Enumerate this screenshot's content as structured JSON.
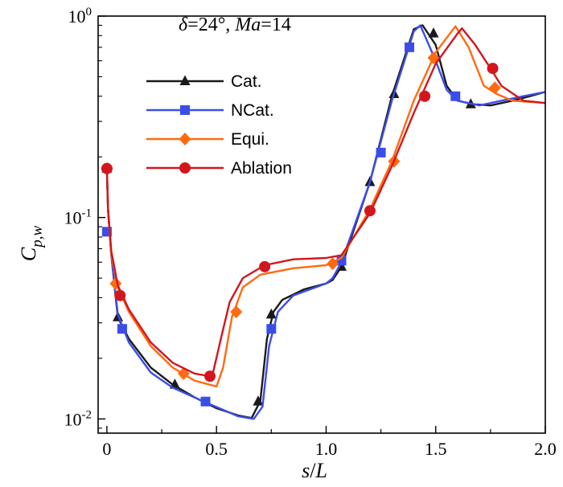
{
  "chart_data": {
    "type": "line",
    "log_y": true,
    "title_parts": {
      "delta": "δ",
      "delta_value": "=24°,  ",
      "ma": "Ma",
      "ma_value": "=14"
    },
    "xlabel": {
      "var": "s",
      "sep": "/",
      "ref": "L"
    },
    "ylabel": {
      "base": "C",
      "sub": "p,w"
    },
    "xlim": [
      -0.04,
      2.0
    ],
    "ylim": [
      0.0085,
      1.0
    ],
    "x_ticks": [
      0,
      0.5,
      1.0,
      1.5,
      2.0
    ],
    "x_tick_labels": [
      "0",
      "0.5",
      "1.0",
      "1.5",
      "2.0"
    ],
    "y_ticks": [
      0.01,
      0.1,
      1.0
    ],
    "y_tick_labels": [
      {
        "base": "10",
        "exp": "-2"
      },
      {
        "base": "10",
        "exp": "-1"
      },
      {
        "base": "10",
        "exp": "0"
      }
    ],
    "legend_position": "top-left",
    "series": [
      {
        "name": "Cat.",
        "color": "#1a1a1a",
        "marker": "triangle",
        "line": [
          [
            0,
            0.175
          ],
          [
            0.005,
            0.11
          ],
          [
            0.02,
            0.065
          ],
          [
            0.05,
            0.032
          ],
          [
            0.1,
            0.025
          ],
          [
            0.2,
            0.018
          ],
          [
            0.3,
            0.0148
          ],
          [
            0.4,
            0.0128
          ],
          [
            0.5,
            0.0113
          ],
          [
            0.6,
            0.0104
          ],
          [
            0.66,
            0.0101
          ],
          [
            0.7,
            0.0123
          ],
          [
            0.73,
            0.025
          ],
          [
            0.76,
            0.034
          ],
          [
            0.8,
            0.039
          ],
          [
            0.9,
            0.044
          ],
          [
            1.0,
            0.047
          ],
          [
            1.03,
            0.049
          ],
          [
            1.07,
            0.057
          ],
          [
            1.2,
            0.15
          ],
          [
            1.3,
            0.4
          ],
          [
            1.4,
            0.86
          ],
          [
            1.44,
            0.9
          ],
          [
            1.5,
            0.72
          ],
          [
            1.55,
            0.45
          ],
          [
            1.6,
            0.38
          ],
          [
            1.67,
            0.365
          ],
          [
            1.75,
            0.36
          ],
          [
            1.85,
            0.38
          ],
          [
            1.93,
            0.4
          ],
          [
            2.0,
            0.42
          ]
        ],
        "markers": [
          [
            0,
            0.175
          ],
          [
            0.05,
            0.032
          ],
          [
            0.31,
            0.0148
          ],
          [
            0.69,
            0.0122
          ],
          [
            0.75,
            0.033
          ],
          [
            1.07,
            0.057
          ],
          [
            1.2,
            0.15
          ],
          [
            1.31,
            0.41
          ],
          [
            1.49,
            0.82
          ],
          [
            1.66,
            0.365
          ]
        ]
      },
      {
        "name": "NCat.",
        "color": "#3b4de8",
        "marker": "square",
        "line": [
          [
            0,
            0.175
          ],
          [
            0.005,
            0.11
          ],
          [
            0.02,
            0.065
          ],
          [
            0.05,
            0.033
          ],
          [
            0.1,
            0.024
          ],
          [
            0.2,
            0.017
          ],
          [
            0.3,
            0.0143
          ],
          [
            0.45,
            0.0121
          ],
          [
            0.6,
            0.0103
          ],
          [
            0.67,
            0.01
          ],
          [
            0.71,
            0.0115
          ],
          [
            0.74,
            0.023
          ],
          [
            0.78,
            0.034
          ],
          [
            0.85,
            0.041
          ],
          [
            1.0,
            0.047
          ],
          [
            1.03,
            0.05
          ],
          [
            1.07,
            0.06
          ],
          [
            1.2,
            0.15
          ],
          [
            1.3,
            0.38
          ],
          [
            1.4,
            0.84
          ],
          [
            1.43,
            0.9
          ],
          [
            1.5,
            0.6
          ],
          [
            1.55,
            0.43
          ],
          [
            1.6,
            0.38
          ],
          [
            1.7,
            0.36
          ],
          [
            1.8,
            0.38
          ],
          [
            1.9,
            0.4
          ],
          [
            2.0,
            0.42
          ]
        ],
        "markers": [
          [
            0,
            0.085
          ],
          [
            0.07,
            0.028
          ],
          [
            0.45,
            0.0122
          ],
          [
            0.75,
            0.028
          ],
          [
            1.07,
            0.061
          ],
          [
            1.25,
            0.21
          ],
          [
            1.38,
            0.7
          ],
          [
            1.59,
            0.4
          ]
        ]
      },
      {
        "name": "Equi.",
        "color": "#ff6a10",
        "marker": "diamond",
        "line": [
          [
            0,
            0.175
          ],
          [
            0.005,
            0.11
          ],
          [
            0.02,
            0.065
          ],
          [
            0.05,
            0.045
          ],
          [
            0.1,
            0.034
          ],
          [
            0.2,
            0.023
          ],
          [
            0.3,
            0.018
          ],
          [
            0.4,
            0.0155
          ],
          [
            0.5,
            0.0145
          ],
          [
            0.53,
            0.018
          ],
          [
            0.57,
            0.032
          ],
          [
            0.62,
            0.045
          ],
          [
            0.7,
            0.052
          ],
          [
            0.85,
            0.056
          ],
          [
            1.0,
            0.058
          ],
          [
            1.07,
            0.063
          ],
          [
            1.2,
            0.11
          ],
          [
            1.3,
            0.19
          ],
          [
            1.4,
            0.38
          ],
          [
            1.5,
            0.66
          ],
          [
            1.59,
            0.89
          ],
          [
            1.65,
            0.7
          ],
          [
            1.72,
            0.45
          ],
          [
            1.78,
            0.41
          ],
          [
            1.85,
            0.38
          ],
          [
            2.0,
            0.37
          ]
        ],
        "markers": [
          [
            0,
            0.175
          ],
          [
            0.04,
            0.047
          ],
          [
            0.35,
            0.0168
          ],
          [
            0.59,
            0.034
          ],
          [
            1.03,
            0.059
          ],
          [
            1.31,
            0.19
          ],
          [
            1.49,
            0.62
          ],
          [
            1.77,
            0.44
          ]
        ]
      },
      {
        "name": "Ablation",
        "color": "#d2161e",
        "marker": "circle",
        "line": [
          [
            0,
            0.175
          ],
          [
            0.005,
            0.11
          ],
          [
            0.02,
            0.068
          ],
          [
            0.05,
            0.046
          ],
          [
            0.1,
            0.035
          ],
          [
            0.2,
            0.024
          ],
          [
            0.3,
            0.019
          ],
          [
            0.4,
            0.0168
          ],
          [
            0.48,
            0.0162
          ],
          [
            0.52,
            0.025
          ],
          [
            0.56,
            0.038
          ],
          [
            0.62,
            0.05
          ],
          [
            0.72,
            0.058
          ],
          [
            0.85,
            0.062
          ],
          [
            1.0,
            0.063
          ],
          [
            1.07,
            0.065
          ],
          [
            1.2,
            0.105
          ],
          [
            1.3,
            0.18
          ],
          [
            1.4,
            0.33
          ],
          [
            1.5,
            0.58
          ],
          [
            1.6,
            0.82
          ],
          [
            1.62,
            0.87
          ],
          [
            1.68,
            0.72
          ],
          [
            1.75,
            0.55
          ],
          [
            1.8,
            0.45
          ],
          [
            1.9,
            0.38
          ],
          [
            2.0,
            0.37
          ]
        ],
        "markers": [
          [
            0,
            0.175
          ],
          [
            0.06,
            0.041
          ],
          [
            0.47,
            0.0163
          ],
          [
            0.72,
            0.057
          ],
          [
            1.2,
            0.108
          ],
          [
            1.45,
            0.4
          ],
          [
            1.76,
            0.55
          ]
        ]
      }
    ]
  }
}
